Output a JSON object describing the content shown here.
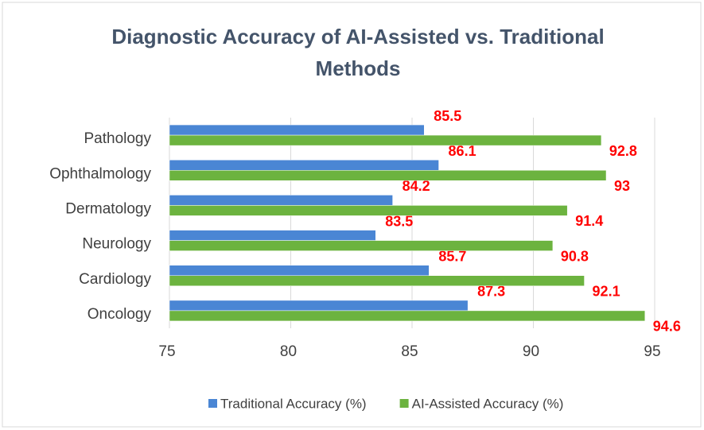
{
  "chart_data": {
    "type": "bar",
    "orientation": "horizontal",
    "title": [
      "Diagnostic Accuracy of AI-Assisted vs. Traditional",
      "Methods"
    ],
    "categories": [
      "Oncology",
      "Cardiology",
      "Neurology",
      "Dermatology",
      "Ophthalmology",
      "Pathology"
    ],
    "series": [
      {
        "name": "Traditional Accuracy (%)",
        "color": "#4a86d4",
        "values": [
          87.3,
          85.7,
          83.5,
          84.2,
          86.1,
          85.5
        ]
      },
      {
        "name": "AI-Assisted Accuracy (%)",
        "color": "#6cb33f",
        "values": [
          94.6,
          92.1,
          90.8,
          91.4,
          93,
          92.8
        ]
      }
    ],
    "xlim": [
      75,
      95
    ],
    "xticks": [
      75,
      80,
      85,
      90,
      95
    ],
    "grid": true,
    "legend": "bottom",
    "value_label_color": "#ff0000"
  }
}
